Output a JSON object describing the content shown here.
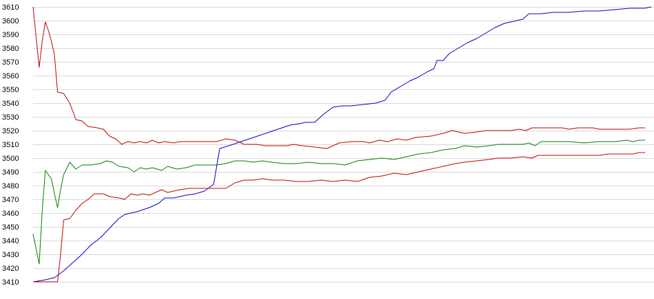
{
  "chart_data": {
    "type": "line",
    "title": "",
    "xlabel": "",
    "ylabel": "",
    "ylim": [
      3410,
      3610
    ],
    "yticks": [
      3410,
      3420,
      3430,
      3440,
      3450,
      3460,
      3470,
      3480,
      3490,
      3500,
      3510,
      3520,
      3530,
      3540,
      3550,
      3560,
      3570,
      3580,
      3590,
      3600,
      3610
    ],
    "grid": true,
    "legend": "none",
    "x_count": 151,
    "series": [
      {
        "color": "#0000c0",
        "points": [
          [
            0,
            3410
          ],
          [
            3,
            3411
          ],
          [
            5,
            3412
          ],
          [
            7,
            3413
          ],
          [
            10,
            3418
          ],
          [
            13,
            3424
          ],
          [
            16,
            3430
          ],
          [
            19,
            3437
          ],
          [
            22,
            3442
          ],
          [
            25,
            3449
          ],
          [
            28,
            3456
          ],
          [
            30,
            3459
          ],
          [
            34,
            3461
          ],
          [
            38,
            3464
          ],
          [
            41,
            3467
          ],
          [
            43,
            3471
          ],
          [
            46,
            3471
          ],
          [
            50,
            3473
          ],
          [
            53,
            3474
          ],
          [
            56,
            3476
          ],
          [
            59,
            3481
          ],
          [
            61,
            3507
          ],
          [
            64,
            3509
          ],
          [
            68,
            3512
          ],
          [
            72,
            3515
          ],
          [
            76,
            3518
          ],
          [
            80,
            3521
          ],
          [
            84,
            3524
          ],
          [
            87,
            3525
          ],
          [
            89,
            3526
          ],
          [
            92,
            3526
          ],
          [
            95,
            3532
          ],
          [
            98,
            3537
          ],
          [
            101,
            3538
          ],
          [
            104,
            3538
          ],
          [
            108,
            3539
          ],
          [
            112,
            3540
          ],
          [
            115,
            3542
          ],
          [
            117,
            3548
          ],
          [
            120,
            3552
          ],
          [
            123,
            3556
          ],
          [
            126,
            3559
          ],
          [
            129,
            3563
          ],
          [
            131,
            3565
          ],
          [
            132,
            3571
          ],
          [
            134,
            3571
          ],
          [
            136,
            3576
          ],
          [
            139,
            3580
          ],
          [
            142,
            3584
          ],
          [
            145,
            3587
          ],
          [
            148,
            3591
          ],
          [
            151,
            3595
          ],
          [
            154,
            3598
          ],
          [
            158,
            3600
          ],
          [
            160,
            3601
          ],
          [
            162,
            3605
          ],
          [
            166,
            3605
          ],
          [
            170,
            3606
          ],
          [
            175,
            3606
          ],
          [
            180,
            3607
          ],
          [
            185,
            3607
          ],
          [
            190,
            3608
          ],
          [
            195,
            3609
          ],
          [
            200,
            3609
          ],
          [
            202,
            3610
          ]
        ]
      },
      {
        "color": "#c00000",
        "points": [
          [
            0,
            3610
          ],
          [
            2,
            3566
          ],
          [
            3,
            3585
          ],
          [
            4,
            3599
          ],
          [
            5,
            3593
          ],
          [
            6,
            3585
          ],
          [
            7,
            3575
          ],
          [
            8,
            3548
          ],
          [
            10,
            3547
          ],
          [
            12,
            3540
          ],
          [
            14,
            3528
          ],
          [
            16,
            3527
          ],
          [
            18,
            3523
          ],
          [
            21,
            3522
          ],
          [
            23,
            3521
          ],
          [
            25,
            3516
          ],
          [
            27,
            3514
          ],
          [
            29,
            3510
          ],
          [
            31,
            3512
          ],
          [
            33,
            3511
          ],
          [
            35,
            3512
          ],
          [
            37,
            3511
          ],
          [
            39,
            3513
          ],
          [
            41,
            3511
          ],
          [
            43,
            3512
          ],
          [
            46,
            3511
          ],
          [
            48,
            3512
          ],
          [
            55,
            3512
          ],
          [
            60,
            3512
          ],
          [
            63,
            3514
          ],
          [
            66,
            3513
          ],
          [
            69,
            3510
          ],
          [
            73,
            3510
          ],
          [
            76,
            3509
          ],
          [
            80,
            3509
          ],
          [
            83,
            3509
          ],
          [
            85,
            3510
          ],
          [
            88,
            3509
          ],
          [
            92,
            3508
          ],
          [
            96,
            3507
          ],
          [
            100,
            3511
          ],
          [
            104,
            3512
          ],
          [
            108,
            3512
          ],
          [
            110,
            3511
          ],
          [
            113,
            3513
          ],
          [
            116,
            3512
          ],
          [
            119,
            3514
          ],
          [
            122,
            3513
          ],
          [
            125,
            3515
          ],
          [
            130,
            3516
          ],
          [
            134,
            3518
          ],
          [
            137,
            3520
          ],
          [
            141,
            3518
          ],
          [
            145,
            3519
          ],
          [
            148,
            3520
          ],
          [
            152,
            3520
          ],
          [
            156,
            3520
          ],
          [
            159,
            3521
          ],
          [
            161,
            3520
          ],
          [
            163,
            3522
          ],
          [
            168,
            3522
          ],
          [
            173,
            3522
          ],
          [
            175,
            3521
          ],
          [
            178,
            3522
          ],
          [
            183,
            3522
          ],
          [
            185,
            3521
          ],
          [
            190,
            3521
          ],
          [
            195,
            3521
          ],
          [
            198,
            3522
          ],
          [
            200,
            3522
          ]
        ]
      },
      {
        "color": "#008000",
        "points": [
          [
            0,
            3445
          ],
          [
            2,
            3423
          ],
          [
            3,
            3461
          ],
          [
            4,
            3491
          ],
          [
            5,
            3488
          ],
          [
            6,
            3485
          ],
          [
            7,
            3474
          ],
          [
            8,
            3464
          ],
          [
            9,
            3477
          ],
          [
            10,
            3488
          ],
          [
            12,
            3497
          ],
          [
            14,
            3492
          ],
          [
            16,
            3495
          ],
          [
            19,
            3495
          ],
          [
            22,
            3496
          ],
          [
            24,
            3498
          ],
          [
            26,
            3497
          ],
          [
            28,
            3494
          ],
          [
            31,
            3493
          ],
          [
            33,
            3490
          ],
          [
            35,
            3493
          ],
          [
            37,
            3492
          ],
          [
            39,
            3493
          ],
          [
            42,
            3491
          ],
          [
            44,
            3494
          ],
          [
            47,
            3492
          ],
          [
            50,
            3493
          ],
          [
            53,
            3495
          ],
          [
            60,
            3495
          ],
          [
            63,
            3496
          ],
          [
            66,
            3498
          ],
          [
            69,
            3498
          ],
          [
            72,
            3497
          ],
          [
            75,
            3498
          ],
          [
            78,
            3497
          ],
          [
            82,
            3496
          ],
          [
            86,
            3496
          ],
          [
            90,
            3497
          ],
          [
            94,
            3496
          ],
          [
            98,
            3496
          ],
          [
            102,
            3495
          ],
          [
            106,
            3498
          ],
          [
            110,
            3499
          ],
          [
            114,
            3500
          ],
          [
            118,
            3499
          ],
          [
            122,
            3501
          ],
          [
            126,
            3503
          ],
          [
            130,
            3504
          ],
          [
            134,
            3506
          ],
          [
            138,
            3507
          ],
          [
            141,
            3509
          ],
          [
            145,
            3508
          ],
          [
            149,
            3509
          ],
          [
            152,
            3510
          ],
          [
            156,
            3510
          ],
          [
            160,
            3510
          ],
          [
            162,
            3511
          ],
          [
            164,
            3509
          ],
          [
            166,
            3512
          ],
          [
            170,
            3512
          ],
          [
            175,
            3512
          ],
          [
            180,
            3511
          ],
          [
            185,
            3512
          ],
          [
            190,
            3512
          ],
          [
            194,
            3513
          ],
          [
            196,
            3512
          ],
          [
            198,
            3513
          ],
          [
            200,
            3513
          ]
        ]
      },
      {
        "color": "#c00000",
        "points": [
          [
            0,
            3410
          ],
          [
            3,
            3410
          ],
          [
            6,
            3410
          ],
          [
            8,
            3410
          ],
          [
            9,
            3430
          ],
          [
            10,
            3455
          ],
          [
            12,
            3456
          ],
          [
            14,
            3462
          ],
          [
            16,
            3467
          ],
          [
            18,
            3470
          ],
          [
            20,
            3474
          ],
          [
            23,
            3474
          ],
          [
            25,
            3472
          ],
          [
            28,
            3471
          ],
          [
            30,
            3470
          ],
          [
            32,
            3474
          ],
          [
            34,
            3473
          ],
          [
            36,
            3474
          ],
          [
            38,
            3473
          ],
          [
            40,
            3475
          ],
          [
            42,
            3477
          ],
          [
            44,
            3475
          ],
          [
            46,
            3476
          ],
          [
            48,
            3477
          ],
          [
            51,
            3478
          ],
          [
            55,
            3478
          ],
          [
            60,
            3478
          ],
          [
            63,
            3478
          ],
          [
            66,
            3482
          ],
          [
            69,
            3484
          ],
          [
            72,
            3484
          ],
          [
            75,
            3485
          ],
          [
            78,
            3484
          ],
          [
            82,
            3484
          ],
          [
            86,
            3483
          ],
          [
            90,
            3483
          ],
          [
            94,
            3484
          ],
          [
            98,
            3483
          ],
          [
            102,
            3484
          ],
          [
            106,
            3483
          ],
          [
            110,
            3486
          ],
          [
            114,
            3487
          ],
          [
            118,
            3489
          ],
          [
            122,
            3488
          ],
          [
            126,
            3490
          ],
          [
            130,
            3492
          ],
          [
            134,
            3494
          ],
          [
            138,
            3496
          ],
          [
            141,
            3497
          ],
          [
            145,
            3498
          ],
          [
            149,
            3499
          ],
          [
            152,
            3500
          ],
          [
            156,
            3500
          ],
          [
            160,
            3501
          ],
          [
            163,
            3500
          ],
          [
            165,
            3502
          ],
          [
            170,
            3502
          ],
          [
            175,
            3502
          ],
          [
            180,
            3502
          ],
          [
            185,
            3502
          ],
          [
            188,
            3503
          ],
          [
            192,
            3503
          ],
          [
            196,
            3503
          ],
          [
            198,
            3504
          ],
          [
            200,
            3504
          ]
        ]
      }
    ]
  }
}
